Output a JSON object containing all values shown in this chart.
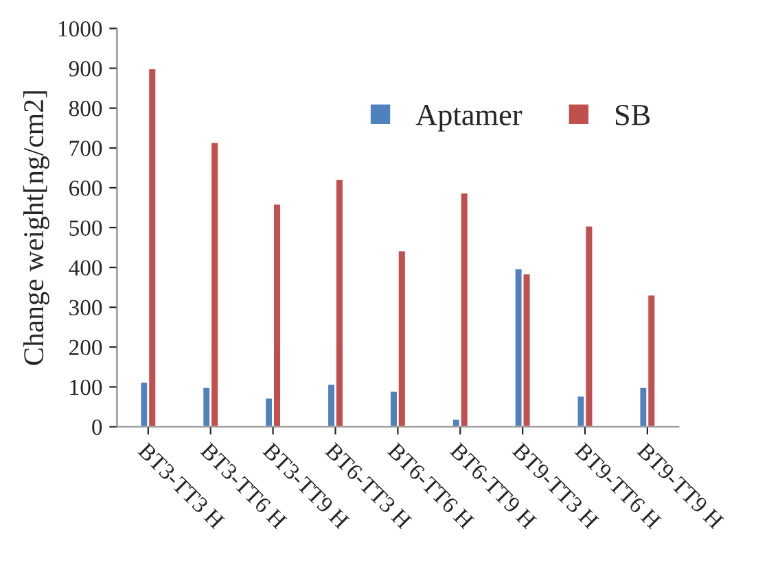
{
  "chart_data": {
    "type": "bar",
    "ylabel": "Change weight[ng/cm2]",
    "categories": [
      "BT3-TT3 H",
      "BT3-TT6 H",
      "BT3-TT9 H",
      "BT6-TT3 H",
      "BT6-TT6 H",
      "BT6-TT9 H",
      "BT9-TT3 H",
      "BT9-TT6 H",
      "BT9-TT9 H"
    ],
    "series": [
      {
        "name": "Aptamer",
        "color": "#4f81bd",
        "values": [
          113,
          100,
          73,
          108,
          90,
          20,
          398,
          78,
          100
        ]
      },
      {
        "name": "SB",
        "color": "#c0504d",
        "values": [
          900,
          715,
          560,
          622,
          443,
          588,
          385,
          505,
          332
        ]
      }
    ],
    "ylim": [
      0,
      1000
    ],
    "yticks": [
      0,
      100,
      200,
      300,
      400,
      500,
      600,
      700,
      800,
      900,
      1000
    ],
    "grid": false,
    "legend": "top right"
  }
}
